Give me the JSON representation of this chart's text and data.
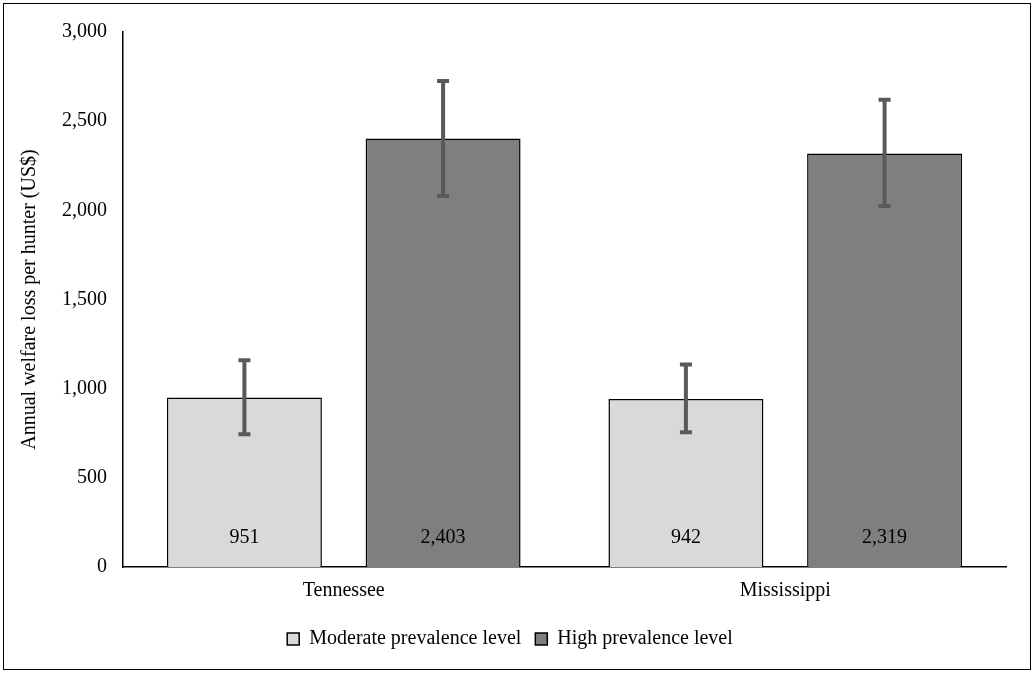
{
  "chart_data": {
    "type": "bar",
    "ylabel": "Annual welfare loss per hunter (US$)",
    "categories": [
      "Tennessee",
      "Mississippi"
    ],
    "series": [
      {
        "name": "Moderate prevalence level",
        "color": "#d9d9d9",
        "values": [
          951,
          942
        ],
        "errors": [
          [
            745,
            1160
          ],
          [
            755,
            1135
          ]
        ],
        "value_labels": [
          "951",
          "942"
        ]
      },
      {
        "name": "High prevalence level",
        "color": "#7f7f7f",
        "values": [
          2403,
          2319
        ],
        "errors": [
          [
            2080,
            2725
          ],
          [
            2025,
            2620
          ]
        ],
        "value_labels": [
          "2,403",
          "2,319"
        ]
      }
    ],
    "ylim": [
      0,
      3000
    ],
    "yticks": [
      {
        "value": 0,
        "label": "0"
      },
      {
        "value": 500,
        "label": "500"
      },
      {
        "value": 1000,
        "label": "1,000"
      },
      {
        "value": 1500,
        "label": "1,500"
      },
      {
        "value": 2000,
        "label": "2,000"
      },
      {
        "value": 2500,
        "label": "2,500"
      },
      {
        "value": 3000,
        "label": "3,000"
      }
    ],
    "grid": false,
    "legend": "bottom"
  }
}
